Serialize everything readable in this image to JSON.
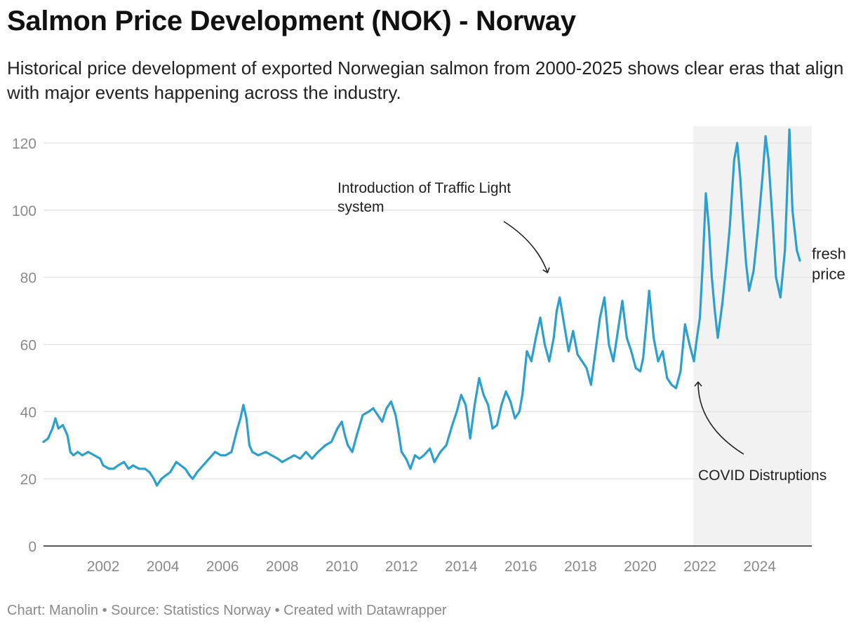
{
  "title": "Salmon Price Development (NOK) - Norway",
  "subtitle": "Historical price development of exported Norwegian salmon from 2000-2025 shows clear eras that align with major events happening across the industry.",
  "footer": "Chart: Manolin • Source: Statistics Norway • Created with Datawrapper",
  "colors": {
    "line": "#2b9fce",
    "grid": "#e3e3e3",
    "shade": "#f2f2f2",
    "axis": "#222222",
    "tick": "#8a8a8a"
  },
  "chart_data": {
    "type": "line",
    "title": "Salmon Price Development (NOK) - Norway",
    "xlabel": "",
    "ylabel": "",
    "xlim": [
      2000,
      2025.75
    ],
    "ylim": [
      0,
      125
    ],
    "yticks": [
      0,
      20,
      40,
      60,
      80,
      100,
      120
    ],
    "xticks": [
      2002,
      2004,
      2006,
      2008,
      2010,
      2012,
      2014,
      2016,
      2018,
      2020,
      2022,
      2024
    ],
    "series": [
      {
        "name": "fresh price",
        "label_lines": [
          "fresh",
          "price"
        ],
        "points": [
          [
            2000.0,
            31
          ],
          [
            2000.15,
            32
          ],
          [
            2000.3,
            35
          ],
          [
            2000.4,
            38
          ],
          [
            2000.5,
            35
          ],
          [
            2000.65,
            36
          ],
          [
            2000.8,
            33
          ],
          [
            2000.9,
            28
          ],
          [
            2001.0,
            27
          ],
          [
            2001.15,
            28
          ],
          [
            2001.3,
            27
          ],
          [
            2001.5,
            28
          ],
          [
            2001.7,
            27
          ],
          [
            2001.9,
            26
          ],
          [
            2002.0,
            24
          ],
          [
            2002.2,
            23
          ],
          [
            2002.35,
            23
          ],
          [
            2002.5,
            24
          ],
          [
            2002.7,
            25
          ],
          [
            2002.85,
            23
          ],
          [
            2003.0,
            24
          ],
          [
            2003.2,
            23
          ],
          [
            2003.4,
            23
          ],
          [
            2003.55,
            22
          ],
          [
            2003.7,
            20
          ],
          [
            2003.8,
            18
          ],
          [
            2003.95,
            20
          ],
          [
            2004.1,
            21
          ],
          [
            2004.25,
            22
          ],
          [
            2004.45,
            25
          ],
          [
            2004.6,
            24
          ],
          [
            2004.75,
            23
          ],
          [
            2004.9,
            21
          ],
          [
            2005.0,
            20
          ],
          [
            2005.15,
            22
          ],
          [
            2005.35,
            24
          ],
          [
            2005.55,
            26
          ],
          [
            2005.75,
            28
          ],
          [
            2005.95,
            27
          ],
          [
            2006.1,
            27
          ],
          [
            2006.3,
            28
          ],
          [
            2006.5,
            35
          ],
          [
            2006.6,
            38
          ],
          [
            2006.7,
            42
          ],
          [
            2006.8,
            38
          ],
          [
            2006.9,
            30
          ],
          [
            2007.0,
            28
          ],
          [
            2007.2,
            27
          ],
          [
            2007.45,
            28
          ],
          [
            2007.65,
            27
          ],
          [
            2007.85,
            26
          ],
          [
            2008.0,
            25
          ],
          [
            2008.2,
            26
          ],
          [
            2008.4,
            27
          ],
          [
            2008.6,
            26
          ],
          [
            2008.8,
            28
          ],
          [
            2009.0,
            26
          ],
          [
            2009.2,
            28
          ],
          [
            2009.45,
            30
          ],
          [
            2009.65,
            31
          ],
          [
            2009.85,
            35
          ],
          [
            2010.0,
            37
          ],
          [
            2010.1,
            33
          ],
          [
            2010.2,
            30
          ],
          [
            2010.35,
            28
          ],
          [
            2010.5,
            33
          ],
          [
            2010.7,
            39
          ],
          [
            2010.9,
            40
          ],
          [
            2011.05,
            41
          ],
          [
            2011.2,
            39
          ],
          [
            2011.35,
            37
          ],
          [
            2011.5,
            41
          ],
          [
            2011.65,
            43
          ],
          [
            2011.8,
            39
          ],
          [
            2011.9,
            34
          ],
          [
            2012.0,
            28
          ],
          [
            2012.15,
            26
          ],
          [
            2012.3,
            23
          ],
          [
            2012.45,
            27
          ],
          [
            2012.6,
            26
          ],
          [
            2012.75,
            27
          ],
          [
            2012.95,
            29
          ],
          [
            2013.1,
            25
          ],
          [
            2013.3,
            28
          ],
          [
            2013.5,
            30
          ],
          [
            2013.7,
            36
          ],
          [
            2013.85,
            40
          ],
          [
            2014.0,
            45
          ],
          [
            2014.15,
            42
          ],
          [
            2014.3,
            32
          ],
          [
            2014.45,
            42
          ],
          [
            2014.6,
            50
          ],
          [
            2014.75,
            45
          ],
          [
            2014.9,
            42
          ],
          [
            2015.05,
            35
          ],
          [
            2015.2,
            36
          ],
          [
            2015.35,
            42
          ],
          [
            2015.5,
            46
          ],
          [
            2015.65,
            43
          ],
          [
            2015.8,
            38
          ],
          [
            2015.95,
            40
          ],
          [
            2016.05,
            45
          ],
          [
            2016.2,
            58
          ],
          [
            2016.35,
            55
          ],
          [
            2016.5,
            62
          ],
          [
            2016.65,
            68
          ],
          [
            2016.8,
            60
          ],
          [
            2016.95,
            55
          ],
          [
            2017.1,
            62
          ],
          [
            2017.2,
            70
          ],
          [
            2017.3,
            74
          ],
          [
            2017.45,
            66
          ],
          [
            2017.6,
            58
          ],
          [
            2017.75,
            64
          ],
          [
            2017.9,
            57
          ],
          [
            2018.05,
            55
          ],
          [
            2018.2,
            53
          ],
          [
            2018.35,
            48
          ],
          [
            2018.5,
            58
          ],
          [
            2018.65,
            68
          ],
          [
            2018.8,
            74
          ],
          [
            2018.95,
            60
          ],
          [
            2019.1,
            55
          ],
          [
            2019.25,
            64
          ],
          [
            2019.4,
            73
          ],
          [
            2019.55,
            62
          ],
          [
            2019.7,
            58
          ],
          [
            2019.85,
            53
          ],
          [
            2020.0,
            52
          ],
          [
            2020.1,
            56
          ],
          [
            2020.2,
            66
          ],
          [
            2020.3,
            76
          ],
          [
            2020.45,
            62
          ],
          [
            2020.6,
            55
          ],
          [
            2020.75,
            58
          ],
          [
            2020.9,
            50
          ],
          [
            2021.05,
            48
          ],
          [
            2021.2,
            47
          ],
          [
            2021.35,
            52
          ],
          [
            2021.5,
            66
          ],
          [
            2021.65,
            60
          ],
          [
            2021.8,
            55
          ],
          [
            2021.9,
            62
          ],
          [
            2022.0,
            68
          ],
          [
            2022.1,
            85
          ],
          [
            2022.2,
            105
          ],
          [
            2022.3,
            95
          ],
          [
            2022.4,
            80
          ],
          [
            2022.5,
            70
          ],
          [
            2022.6,
            62
          ],
          [
            2022.75,
            72
          ],
          [
            2022.9,
            85
          ],
          [
            2023.0,
            95
          ],
          [
            2023.15,
            115
          ],
          [
            2023.25,
            120
          ],
          [
            2023.35,
            110
          ],
          [
            2023.45,
            96
          ],
          [
            2023.55,
            84
          ],
          [
            2023.65,
            76
          ],
          [
            2023.8,
            82
          ],
          [
            2023.95,
            95
          ],
          [
            2024.1,
            110
          ],
          [
            2024.2,
            122
          ],
          [
            2024.3,
            115
          ],
          [
            2024.45,
            95
          ],
          [
            2024.55,
            80
          ],
          [
            2024.7,
            74
          ],
          [
            2024.85,
            88
          ],
          [
            2025.0,
            124
          ],
          [
            2025.1,
            100
          ],
          [
            2025.25,
            88
          ],
          [
            2025.35,
            85
          ]
        ]
      }
    ],
    "shaded_region": {
      "from": 2021.78,
      "to": 2025.75
    },
    "annotations": [
      {
        "id": "traffic-light",
        "lines": [
          "Introduction of Traffic Light",
          "system"
        ]
      },
      {
        "id": "covid",
        "lines": [
          "COVID Distruptions"
        ]
      }
    ],
    "grid": true
  }
}
